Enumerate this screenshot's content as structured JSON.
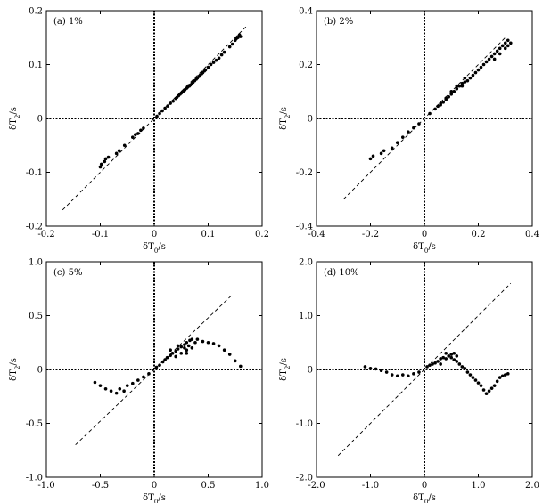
{
  "chart_data": [
    {
      "type": "scatter",
      "title": "(a) 1%",
      "xlabel": "δT0/s",
      "ylabel": "δT2/s",
      "xlim": [
        -0.2,
        0.2
      ],
      "ylim": [
        -0.2,
        0.2
      ],
      "xticks": [
        -0.2,
        -0.1,
        0,
        0.1,
        0.2
      ],
      "xtick_labels": [
        "-0.2",
        "-0.1",
        "0",
        "0.1",
        "0.2"
      ],
      "yticks": [
        -0.2,
        -0.1,
        0,
        0.1,
        0.2
      ],
      "ytick_labels": [
        "-0.2",
        "-0.1",
        "0",
        "0.1",
        "0.2"
      ],
      "reference_line": [
        [
          -0.17,
          -0.17
        ],
        [
          0.17,
          0.17
        ]
      ],
      "points": [
        [
          -0.1,
          -0.09
        ],
        [
          -0.098,
          -0.085
        ],
        [
          -0.092,
          -0.08
        ],
        [
          -0.09,
          -0.075
        ],
        [
          -0.085,
          -0.072
        ],
        [
          -0.07,
          -0.065
        ],
        [
          -0.065,
          -0.06
        ],
        [
          -0.055,
          -0.05
        ],
        [
          -0.04,
          -0.035
        ],
        [
          -0.035,
          -0.03
        ],
        [
          -0.03,
          -0.028
        ],
        [
          -0.025,
          -0.022
        ],
        [
          -0.02,
          -0.018
        ],
        [
          0.005,
          0.004
        ],
        [
          0.01,
          0.009
        ],
        [
          0.015,
          0.014
        ],
        [
          0.02,
          0.019
        ],
        [
          0.025,
          0.023
        ],
        [
          0.03,
          0.028
        ],
        [
          0.035,
          0.032
        ],
        [
          0.04,
          0.037
        ],
        [
          0.042,
          0.039
        ],
        [
          0.045,
          0.042
        ],
        [
          0.048,
          0.045
        ],
        [
          0.05,
          0.047
        ],
        [
          0.052,
          0.049
        ],
        [
          0.055,
          0.051
        ],
        [
          0.057,
          0.053
        ],
        [
          0.06,
          0.056
        ],
        [
          0.062,
          0.058
        ],
        [
          0.065,
          0.06
        ],
        [
          0.067,
          0.062
        ],
        [
          0.07,
          0.065
        ],
        [
          0.072,
          0.067
        ],
        [
          0.075,
          0.07
        ],
        [
          0.078,
          0.073
        ],
        [
          0.08,
          0.075
        ],
        [
          0.083,
          0.078
        ],
        [
          0.085,
          0.08
        ],
        [
          0.088,
          0.083
        ],
        [
          0.09,
          0.085
        ],
        [
          0.093,
          0.088
        ],
        [
          0.095,
          0.09
        ],
        [
          0.1,
          0.095
        ],
        [
          0.105,
          0.1
        ],
        [
          0.11,
          0.104
        ],
        [
          0.115,
          0.108
        ],
        [
          0.12,
          0.112
        ],
        [
          0.125,
          0.118
        ],
        [
          0.13,
          0.123
        ],
        [
          0.14,
          0.133
        ],
        [
          0.145,
          0.138
        ],
        [
          0.15,
          0.145
        ],
        [
          0.152,
          0.148
        ],
        [
          0.155,
          0.15
        ],
        [
          0.157,
          0.153
        ],
        [
          0.158,
          0.155
        ],
        [
          0.16,
          0.152
        ]
      ]
    },
    {
      "type": "scatter",
      "title": "(b) 2%",
      "xlabel": "δT0/s",
      "ylabel": "δT2/s",
      "xlim": [
        -0.4,
        0.4
      ],
      "ylim": [
        -0.4,
        0.4
      ],
      "xticks": [
        -0.4,
        -0.2,
        0,
        0.2,
        0.4
      ],
      "xtick_labels": [
        "-0.4",
        "-0.2",
        "0",
        "0.2",
        "0.4"
      ],
      "yticks": [
        -0.4,
        -0.2,
        0,
        0.2,
        0.4
      ],
      "ytick_labels": [
        "-0.4",
        "-0.2",
        "0",
        "0.2",
        "0.4"
      ],
      "reference_line": [
        [
          -0.3,
          -0.3
        ],
        [
          0.3,
          0.3
        ]
      ],
      "points": [
        [
          -0.2,
          -0.15
        ],
        [
          -0.19,
          -0.14
        ],
        [
          -0.16,
          -0.13
        ],
        [
          -0.15,
          -0.12
        ],
        [
          -0.12,
          -0.11
        ],
        [
          -0.1,
          -0.09
        ],
        [
          -0.08,
          -0.07
        ],
        [
          -0.06,
          -0.05
        ],
        [
          -0.04,
          -0.035
        ],
        [
          -0.02,
          -0.02
        ],
        [
          0.02,
          0.018
        ],
        [
          0.04,
          0.035
        ],
        [
          0.05,
          0.045
        ],
        [
          0.06,
          0.055
        ],
        [
          0.07,
          0.06
        ],
        [
          0.08,
          0.07
        ],
        [
          0.09,
          0.08
        ],
        [
          0.1,
          0.09
        ],
        [
          0.11,
          0.1
        ],
        [
          0.12,
          0.11
        ],
        [
          0.13,
          0.12
        ],
        [
          0.14,
          0.13
        ],
        [
          0.15,
          0.135
        ],
        [
          0.16,
          0.14
        ],
        [
          0.17,
          0.15
        ],
        [
          0.18,
          0.16
        ],
        [
          0.19,
          0.17
        ],
        [
          0.2,
          0.18
        ],
        [
          0.21,
          0.19
        ],
        [
          0.22,
          0.2
        ],
        [
          0.23,
          0.21
        ],
        [
          0.24,
          0.22
        ],
        [
          0.25,
          0.23
        ],
        [
          0.26,
          0.24
        ],
        [
          0.27,
          0.25
        ],
        [
          0.28,
          0.26
        ],
        [
          0.29,
          0.27
        ],
        [
          0.3,
          0.28
        ],
        [
          0.31,
          0.29
        ],
        [
          0.31,
          0.27
        ],
        [
          0.32,
          0.28
        ],
        [
          0.3,
          0.26
        ],
        [
          0.28,
          0.24
        ],
        [
          0.26,
          0.22
        ],
        [
          0.1,
          0.1
        ],
        [
          0.12,
          0.12
        ],
        [
          0.14,
          0.12
        ],
        [
          0.08,
          0.075
        ],
        [
          0.06,
          0.05
        ],
        [
          0.15,
          0.15
        ]
      ]
    },
    {
      "type": "scatter",
      "title": "(c) 5%",
      "xlabel": "δT0/s",
      "ylabel": "δT2/s",
      "xlim": [
        -1.0,
        1.0
      ],
      "ylim": [
        -1.0,
        1.0
      ],
      "xticks": [
        -1.0,
        -0.5,
        0,
        0.5,
        1.0
      ],
      "xtick_labels": [
        "-1.0",
        "-0.5",
        "0",
        "0.5",
        "1.0"
      ],
      "yticks": [
        -1.0,
        -0.5,
        0,
        0.5,
        1.0
      ],
      "ytick_labels": [
        "-1.0",
        "-0.5",
        "0",
        "0.5",
        "1.0"
      ],
      "reference_line": [
        [
          -0.73,
          -0.7
        ],
        [
          0.73,
          0.7
        ]
      ],
      "points": [
        [
          -0.55,
          -0.12
        ],
        [
          -0.5,
          -0.15
        ],
        [
          -0.45,
          -0.18
        ],
        [
          -0.4,
          -0.2
        ],
        [
          -0.35,
          -0.22
        ],
        [
          -0.32,
          -0.18
        ],
        [
          -0.28,
          -0.2
        ],
        [
          -0.25,
          -0.15
        ],
        [
          -0.2,
          -0.13
        ],
        [
          -0.15,
          -0.1
        ],
        [
          -0.1,
          -0.07
        ],
        [
          -0.05,
          -0.04
        ],
        [
          0.02,
          0.02
        ],
        [
          0.05,
          0.04
        ],
        [
          0.08,
          0.07
        ],
        [
          0.1,
          0.09
        ],
        [
          0.12,
          0.11
        ],
        [
          0.15,
          0.13
        ],
        [
          0.17,
          0.15
        ],
        [
          0.2,
          0.17
        ],
        [
          0.22,
          0.19
        ],
        [
          0.25,
          0.21
        ],
        [
          0.28,
          0.23
        ],
        [
          0.3,
          0.25
        ],
        [
          0.33,
          0.27
        ],
        [
          0.35,
          0.28
        ],
        [
          0.2,
          0.12
        ],
        [
          0.25,
          0.15
        ],
        [
          0.3,
          0.18
        ],
        [
          0.15,
          0.18
        ],
        [
          0.22,
          0.22
        ],
        [
          0.28,
          0.2
        ],
        [
          0.32,
          0.22
        ],
        [
          0.38,
          0.25
        ],
        [
          0.4,
          0.28
        ],
        [
          0.45,
          0.26
        ],
        [
          0.5,
          0.25
        ],
        [
          0.55,
          0.24
        ],
        [
          0.6,
          0.22
        ],
        [
          0.65,
          0.18
        ],
        [
          0.7,
          0.14
        ],
        [
          0.75,
          0.08
        ],
        [
          0.8,
          0.03
        ],
        [
          0.35,
          0.2
        ],
        [
          0.3,
          0.15
        ]
      ]
    },
    {
      "type": "scatter",
      "title": "(d) 10%",
      "xlabel": "δT0/s",
      "ylabel": "δT2/s",
      "xlim": [
        -2.0,
        2.0
      ],
      "ylim": [
        -2.0,
        2.0
      ],
      "xticks": [
        -2.0,
        -1.0,
        0,
        1.0,
        2.0
      ],
      "xtick_labels": [
        "-2.0",
        "-1.0",
        "0",
        "1.0",
        "2.0"
      ],
      "yticks": [
        -2.0,
        -1.0,
        0,
        1.0,
        2.0
      ],
      "ytick_labels": [
        "-2.0",
        "-1.0",
        "0",
        "1.0",
        "2.0"
      ],
      "reference_line": [
        [
          -1.6,
          -1.6
        ],
        [
          1.6,
          1.6
        ]
      ],
      "points": [
        [
          -1.1,
          0.05
        ],
        [
          -1.0,
          0.02
        ],
        [
          -0.9,
          0.01
        ],
        [
          -0.8,
          -0.02
        ],
        [
          -0.7,
          -0.05
        ],
        [
          -0.6,
          -0.1
        ],
        [
          -0.5,
          -0.12
        ],
        [
          -0.4,
          -0.1
        ],
        [
          -0.3,
          -0.12
        ],
        [
          -0.2,
          -0.08
        ],
        [
          -0.1,
          -0.05
        ],
        [
          0.05,
          0.05
        ],
        [
          0.1,
          0.08
        ],
        [
          0.15,
          0.1
        ],
        [
          0.2,
          0.12
        ],
        [
          0.25,
          0.15
        ],
        [
          0.3,
          0.2
        ],
        [
          0.35,
          0.22
        ],
        [
          0.4,
          0.2
        ],
        [
          0.45,
          0.25
        ],
        [
          0.5,
          0.22
        ],
        [
          0.55,
          0.18
        ],
        [
          0.6,
          0.15
        ],
        [
          0.65,
          0.1
        ],
        [
          0.7,
          0.05
        ],
        [
          0.75,
          0.02
        ],
        [
          0.8,
          -0.05
        ],
        [
          0.85,
          -0.1
        ],
        [
          0.9,
          -0.15
        ],
        [
          0.95,
          -0.2
        ],
        [
          1.0,
          -0.25
        ],
        [
          1.05,
          -0.3
        ],
        [
          1.1,
          -0.38
        ],
        [
          1.15,
          -0.45
        ],
        [
          1.2,
          -0.4
        ],
        [
          1.25,
          -0.35
        ],
        [
          1.3,
          -0.3
        ],
        [
          1.35,
          -0.22
        ],
        [
          1.4,
          -0.15
        ],
        [
          1.45,
          -0.12
        ],
        [
          1.5,
          -0.1
        ],
        [
          1.55,
          -0.08
        ],
        [
          0.4,
          0.3
        ],
        [
          0.5,
          0.28
        ],
        [
          0.3,
          0.1
        ],
        [
          0.6,
          0.25
        ],
        [
          0.55,
          0.3
        ]
      ]
    }
  ]
}
